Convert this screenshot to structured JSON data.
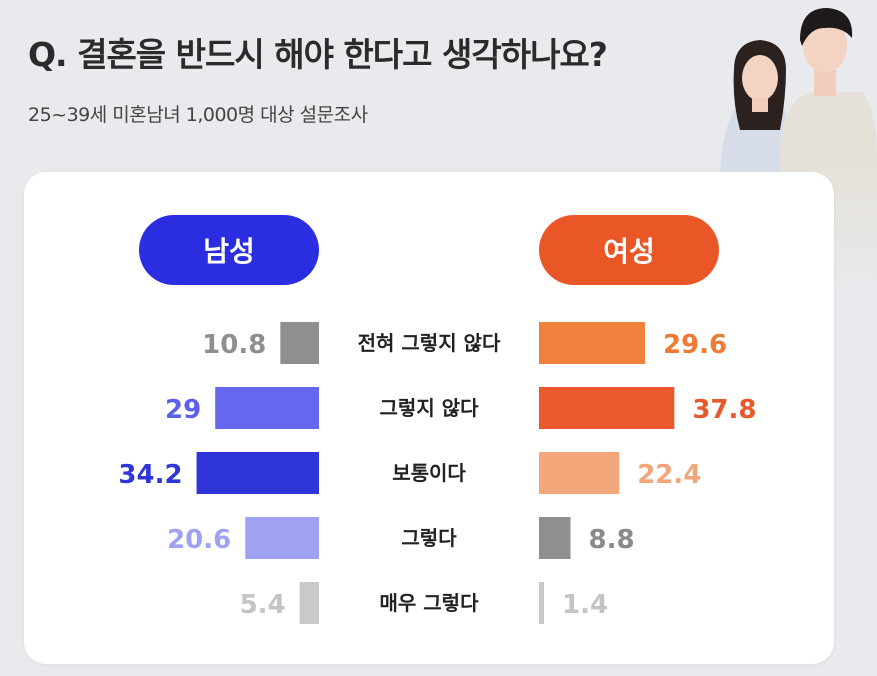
{
  "header": {
    "title": "Q. 결혼을 반드시 해야 한다고 생각하나요?",
    "subtitle": "25~39세 미혼남녀 1,000명 대상 설문조사"
  },
  "colors": {
    "male_pill": "#2a2ee0",
    "female_pill": "#ea5727"
  },
  "chart_data": {
    "type": "bar",
    "orientation": "horizontal-diverging",
    "categories": [
      "전혀 그렇지 않다",
      "그렇지 않다",
      "보통이다",
      "그렇다",
      "매우 그렇다"
    ],
    "series": [
      {
        "name": "남성",
        "values": [
          10.8,
          29,
          34.2,
          20.6,
          5.4
        ],
        "bar_colors": [
          "#8f8f8f",
          "#6468ef",
          "#2f35d8",
          "#9fa2f3",
          "#c9c9c9"
        ],
        "label_colors": [
          "#8f8f8f",
          "#5b5fee",
          "#2f35d8",
          "#9fa2f3",
          "#c4c4c4"
        ]
      },
      {
        "name": "여성",
        "values": [
          29.6,
          37.8,
          22.4,
          8.8,
          1.4
        ],
        "bar_colors": [
          "#f0813d",
          "#e8592b",
          "#f2a67a",
          "#8f8f8f",
          "#c9c9c9"
        ],
        "label_colors": [
          "#ef7a34",
          "#e8592b",
          "#f2a67a",
          "#8a8a8a",
          "#c4c4c4"
        ]
      }
    ],
    "xlabel": "",
    "ylabel": "",
    "grid": false,
    "legend": "top"
  }
}
